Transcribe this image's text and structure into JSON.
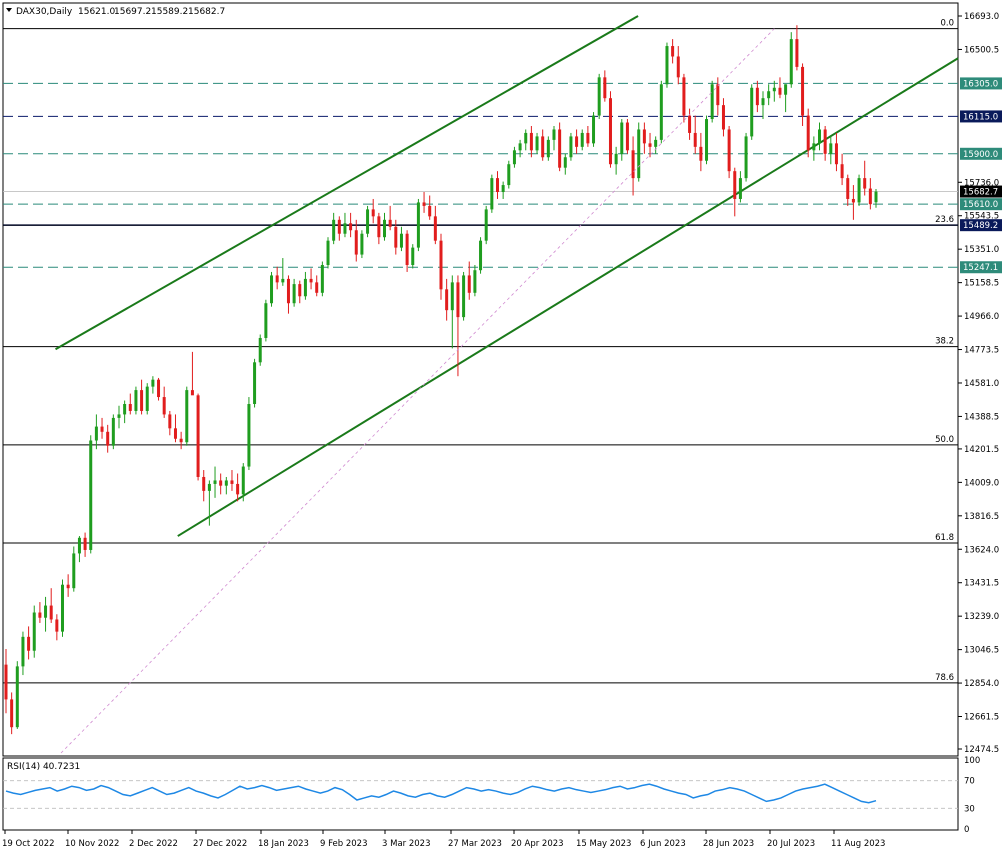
{
  "chart_data": [
    {
      "type": "candlestick",
      "title": "DAX30,Daily",
      "ohlc_readout": [
        "15621.0",
        "15697.2",
        "15589.2",
        "15682.7"
      ],
      "price_axis_ticks": [
        "16693.0",
        "16500.5",
        "15736.0",
        "15543.5",
        "15351.0",
        "15158.5",
        "14966.0",
        "14773.5",
        "14581.0",
        "14388.5",
        "14201.5",
        "14009.0",
        "13816.5",
        "13624.0",
        "13431.5",
        "13239.0",
        "13046.5",
        "12854.0",
        "12661.5",
        "12474.5"
      ],
      "x_axis_dates": [
        "19 Oct 2022",
        "10 Nov 2022",
        "2 Dec 2022",
        "27 Dec 2022",
        "18 Jan 2023",
        "9 Feb 2023",
        "3 Mar 2023",
        "27 Mar 2023",
        "20 Apr 2023",
        "15 May 2023",
        "6 Jun 2023",
        "28 Jun 2023",
        "20 Jul 2023",
        "11 Aug 2023"
      ],
      "ylim": [
        12474.5,
        16693.0
      ],
      "last_price": "15682.7",
      "colors": {
        "up": "#1f9d1f",
        "down": "#e11d1d",
        "channel": "#1a7a1a",
        "level": "#2a8a7a",
        "level_dark": "#0a1a6a",
        "fib": "#000000",
        "rsi": "#1e88e5",
        "label_bg": "#2e8b7a",
        "label_dark_bg": "#0a1a5a"
      },
      "horizontal_levels": [
        {
          "price": 16305.0,
          "label": "16305.0",
          "style": "dashed",
          "color": "level"
        },
        {
          "price": 16115.0,
          "label": "16115.0",
          "style": "dashed",
          "color": "level_dark"
        },
        {
          "price": 15900.0,
          "label": "15900.0",
          "style": "dashed",
          "color": "level"
        },
        {
          "price": 15610.0,
          "label": "15610.0",
          "style": "dashed",
          "color": "level"
        },
        {
          "price": 15489.2,
          "label": "15489.2",
          "style": "solid",
          "color": "level_dark"
        },
        {
          "price": 15247.1,
          "label": "15247.1",
          "style": "dashed",
          "color": "level"
        }
      ],
      "fibonacci": [
        {
          "ratio": "0.0",
          "price": 16620.0
        },
        {
          "ratio": "23.6",
          "price": 15489.2
        },
        {
          "ratio": "38.2",
          "price": 14790.0
        },
        {
          "ratio": "50.0",
          "price": 14225.0
        },
        {
          "ratio": "61.8",
          "price": 13660.0
        },
        {
          "ratio": "78.6",
          "price": 12855.0
        }
      ],
      "candles": [
        [
          12960,
          13050,
          12680,
          12760
        ],
        [
          12760,
          12800,
          12560,
          12600
        ],
        [
          12600,
          12980,
          12590,
          12950
        ],
        [
          12950,
          13150,
          12900,
          13120
        ],
        [
          13120,
          13180,
          12990,
          13040
        ],
        [
          13040,
          13300,
          13000,
          13260
        ],
        [
          13260,
          13320,
          13200,
          13230
        ],
        [
          13230,
          13350,
          13150,
          13300
        ],
        [
          13300,
          13400,
          13200,
          13220
        ],
        [
          13220,
          13250,
          13100,
          13150
        ],
        [
          13150,
          13450,
          13120,
          13420
        ],
        [
          13420,
          13480,
          13350,
          13400
        ],
        [
          13400,
          13640,
          13380,
          13600
        ],
        [
          13600,
          13700,
          13550,
          13690
        ],
        [
          13690,
          13720,
          13580,
          13620
        ],
        [
          13620,
          14280,
          13600,
          14250
        ],
        [
          14250,
          14400,
          14200,
          14330
        ],
        [
          14330,
          14380,
          14260,
          14300
        ],
        [
          14300,
          14340,
          14180,
          14220
        ],
        [
          14220,
          14400,
          14200,
          14380
        ],
        [
          14380,
          14450,
          14320,
          14400
        ],
        [
          14400,
          14480,
          14350,
          14460
        ],
        [
          14460,
          14520,
          14400,
          14420
        ],
        [
          14420,
          14560,
          14400,
          14540
        ],
        [
          14540,
          14600,
          14400,
          14420
        ],
        [
          14420,
          14580,
          14400,
          14560
        ],
        [
          14560,
          14620,
          14520,
          14600
        ],
        [
          14600,
          14610,
          14480,
          14500
        ],
        [
          14500,
          14560,
          14380,
          14400
        ],
        [
          14400,
          14420,
          14280,
          14320
        ],
        [
          14320,
          14400,
          14240,
          14260
        ],
        [
          14260,
          14300,
          14200,
          14240
        ],
        [
          14240,
          14560,
          14220,
          14540
        ],
        [
          14540,
          14760,
          14520,
          14510
        ],
        [
          14510,
          14520,
          14020,
          14040
        ],
        [
          14040,
          14080,
          13900,
          13960
        ],
        [
          13960,
          14020,
          13760,
          14000
        ],
        [
          14000,
          14100,
          13920,
          14020
        ],
        [
          14020,
          14060,
          13940,
          13990
        ],
        [
          13990,
          14040,
          13940,
          14020
        ],
        [
          14020,
          14080,
          13960,
          14000
        ],
        [
          14000,
          14060,
          13900,
          13940
        ],
        [
          13940,
          14120,
          13900,
          14100
        ],
        [
          14100,
          14500,
          14080,
          14460
        ],
        [
          14460,
          14720,
          14440,
          14700
        ],
        [
          14700,
          14860,
          14680,
          14840
        ],
        [
          14840,
          15060,
          14820,
          15040
        ],
        [
          15040,
          15220,
          15020,
          15200
        ],
        [
          15200,
          15250,
          15120,
          15160
        ],
        [
          15160,
          15300,
          15140,
          15180
        ],
        [
          15180,
          15200,
          14980,
          15040
        ],
        [
          15040,
          15180,
          15020,
          15150
        ],
        [
          15150,
          15170,
          15040,
          15080
        ],
        [
          15080,
          15220,
          15060,
          15180
        ],
        [
          15180,
          15240,
          15120,
          15160
        ],
        [
          15160,
          15200,
          15080,
          15100
        ],
        [
          15100,
          15280,
          15080,
          15260
        ],
        [
          15260,
          15420,
          15240,
          15400
        ],
        [
          15400,
          15560,
          15380,
          15520
        ],
        [
          15520,
          15540,
          15400,
          15440
        ],
        [
          15440,
          15560,
          15420,
          15500
        ],
        [
          15500,
          15560,
          15420,
          15460
        ],
        [
          15460,
          15520,
          15280,
          15320
        ],
        [
          15320,
          15460,
          15300,
          15440
        ],
        [
          15440,
          15600,
          15420,
          15580
        ],
        [
          15580,
          15640,
          15500,
          15540
        ],
        [
          15540,
          15560,
          15380,
          15420
        ],
        [
          15420,
          15560,
          15400,
          15520
        ],
        [
          15520,
          15600,
          15460,
          15480
        ],
        [
          15480,
          15520,
          15320,
          15360
        ],
        [
          15360,
          15480,
          15340,
          15440
        ],
        [
          15440,
          15460,
          15220,
          15260
        ],
        [
          15260,
          15380,
          15240,
          15360
        ],
        [
          15360,
          15640,
          15340,
          15620
        ],
        [
          15620,
          15680,
          15560,
          15600
        ],
        [
          15600,
          15660,
          15520,
          15540
        ],
        [
          15540,
          15600,
          15380,
          15400
        ],
        [
          15400,
          15440,
          15060,
          15120
        ],
        [
          15120,
          15180,
          14940,
          15000
        ],
        [
          15000,
          15200,
          14780,
          15160
        ],
        [
          15160,
          15200,
          14620,
          14960
        ],
        [
          14960,
          15220,
          14940,
          15200
        ],
        [
          15200,
          15280,
          15060,
          15100
        ],
        [
          15100,
          15260,
          15080,
          15230
        ],
        [
          15230,
          15420,
          15210,
          15400
        ],
        [
          15400,
          15600,
          15380,
          15580
        ],
        [
          15580,
          15780,
          15560,
          15760
        ],
        [
          15760,
          15800,
          15640,
          15680
        ],
        [
          15680,
          15740,
          15640,
          15720
        ],
        [
          15720,
          15860,
          15700,
          15840
        ],
        [
          15840,
          15940,
          15820,
          15920
        ],
        [
          15920,
          15980,
          15880,
          15960
        ],
        [
          15960,
          16040,
          15920,
          16020
        ],
        [
          16020,
          16060,
          15880,
          15920
        ],
        [
          15920,
          16020,
          15900,
          16000
        ],
        [
          16000,
          16040,
          15860,
          15880
        ],
        [
          15880,
          16000,
          15860,
          15980
        ],
        [
          15980,
          16060,
          15920,
          16040
        ],
        [
          16040,
          16080,
          15800,
          15820
        ],
        [
          15820,
          15900,
          15780,
          15880
        ],
        [
          15880,
          16020,
          15860,
          16000
        ],
        [
          16000,
          16040,
          15900,
          15940
        ],
        [
          15940,
          16040,
          15920,
          16020
        ],
        [
          16020,
          16060,
          15940,
          15960
        ],
        [
          15960,
          16140,
          15940,
          16120
        ],
        [
          16120,
          16360,
          16100,
          16340
        ],
        [
          16340,
          16380,
          16200,
          16220
        ],
        [
          16220,
          16260,
          15820,
          15840
        ],
        [
          15840,
          15940,
          15780,
          15900
        ],
        [
          15900,
          16100,
          15860,
          16080
        ],
        [
          16080,
          16100,
          15900,
          15920
        ],
        [
          15920,
          16000,
          15660,
          15760
        ],
        [
          15760,
          16080,
          15740,
          16040
        ],
        [
          16040,
          16080,
          15900,
          15960
        ],
        [
          15960,
          16020,
          15880,
          15940
        ],
        [
          15940,
          16000,
          15900,
          15980
        ],
        [
          15980,
          16320,
          15960,
          16300
        ],
        [
          16300,
          16540,
          16280,
          16520
        ],
        [
          16520,
          16560,
          16420,
          16460
        ],
        [
          16460,
          16520,
          16300,
          16340
        ],
        [
          16340,
          16360,
          16080,
          16120
        ],
        [
          16120,
          16160,
          15980,
          16020
        ],
        [
          16020,
          16120,
          15900,
          15940
        ],
        [
          15940,
          16020,
          15800,
          15860
        ],
        [
          15860,
          16120,
          15840,
          16100
        ],
        [
          16100,
          16320,
          16080,
          16300
        ],
        [
          16300,
          16340,
          16120,
          16180
        ],
        [
          16180,
          16220,
          16000,
          16040
        ],
        [
          16040,
          16060,
          15760,
          15800
        ],
        [
          15800,
          15820,
          15540,
          15640
        ],
        [
          15640,
          15800,
          15620,
          15760
        ],
        [
          15760,
          16020,
          15740,
          16000
        ],
        [
          16000,
          16300,
          15980,
          16280
        ],
        [
          16280,
          16320,
          16140,
          16180
        ],
        [
          16180,
          16260,
          16100,
          16220
        ],
        [
          16220,
          16300,
          16180,
          16260
        ],
        [
          16260,
          16320,
          16200,
          16280
        ],
        [
          16280,
          16340,
          16220,
          16240
        ],
        [
          16240,
          16300,
          16140,
          16300
        ],
        [
          16300,
          16600,
          16280,
          16560
        ],
        [
          16560,
          16640,
          16380,
          16400
        ],
        [
          16400,
          16420,
          16060,
          16120
        ],
        [
          16120,
          16160,
          15880,
          15920
        ],
        [
          15920,
          16000,
          15860,
          15960
        ],
        [
          15960,
          16080,
          15920,
          16040
        ],
        [
          16040,
          16060,
          15860,
          15900
        ],
        [
          15900,
          16000,
          15840,
          15960
        ],
        [
          15960,
          16020,
          15800,
          15840
        ],
        [
          15840,
          15900,
          15720,
          15760
        ],
        [
          15760,
          15780,
          15600,
          15640
        ],
        [
          15640,
          15720,
          15520,
          15620
        ],
        [
          15620,
          15780,
          15600,
          15760
        ],
        [
          15760,
          15860,
          15660,
          15700
        ],
        [
          15700,
          15760,
          15580,
          15610
        ],
        [
          15621,
          15697.2,
          15589.2,
          15682.7
        ]
      ],
      "channel_lines": [
        {
          "from": [
            0.055,
            14775
          ],
          "to": [
            0.665,
            16693
          ]
        },
        {
          "from": [
            0.183,
            13700
          ],
          "to": [
            1.0,
            16450
          ]
        }
      ],
      "rsi": {
        "label": "RSI(14) 40.7231",
        "levels": [
          "70",
          "30"
        ],
        "axis": [
          "100",
          "70",
          "30",
          "0"
        ],
        "values": [
          55,
          52,
          50,
          53,
          56,
          58,
          60,
          55,
          58,
          62,
          60,
          56,
          58,
          63,
          60,
          55,
          50,
          48,
          52,
          56,
          60,
          55,
          50,
          52,
          56,
          60,
          55,
          52,
          48,
          45,
          50,
          56,
          62,
          58,
          60,
          63,
          60,
          56,
          58,
          60,
          62,
          58,
          55,
          52,
          55,
          60,
          57,
          50,
          42,
          45,
          48,
          46,
          50,
          55,
          52,
          48,
          46,
          50,
          52,
          48,
          46,
          50,
          55,
          60,
          58,
          55,
          57,
          55,
          52,
          50,
          53,
          58,
          62,
          60,
          57,
          55,
          58,
          60,
          57,
          55,
          53,
          55,
          57,
          60,
          62,
          58,
          60,
          63,
          65,
          62,
          58,
          55,
          52,
          50,
          45,
          48,
          50,
          55,
          57,
          60,
          58,
          55,
          50,
          45,
          40,
          42,
          45,
          50,
          55,
          58,
          60,
          62,
          65,
          60,
          55,
          50,
          45,
          40,
          38,
          41
        ]
      }
    }
  ]
}
